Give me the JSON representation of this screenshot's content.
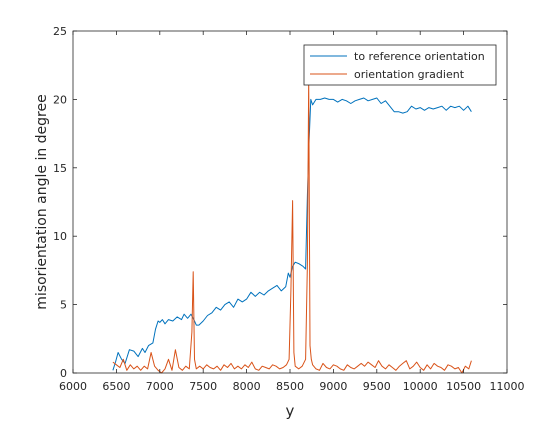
{
  "chart_data": {
    "type": "line",
    "title": "",
    "xlabel": "y",
    "ylabel": "misorientation angle in degree",
    "xlim": [
      6000,
      11000
    ],
    "ylim": [
      0,
      25
    ],
    "xticks": [
      6000,
      6500,
      7000,
      7500,
      8000,
      8500,
      9000,
      9500,
      10000,
      10500,
      11000
    ],
    "yticks": [
      0,
      5,
      10,
      15,
      20,
      25
    ],
    "grid": false,
    "legend_position": "top-right",
    "series": [
      {
        "name": "to reference orientation",
        "color": "#0072BD",
        "x": [
          6460,
          6490,
          6520,
          6560,
          6600,
          6650,
          6700,
          6750,
          6800,
          6830,
          6870,
          6920,
          6950,
          6980,
          7000,
          7030,
          7060,
          7100,
          7150,
          7200,
          7250,
          7280,
          7320,
          7360,
          7400,
          7420,
          7450,
          7500,
          7550,
          7600,
          7650,
          7700,
          7750,
          7800,
          7850,
          7900,
          7950,
          8000,
          8050,
          8100,
          8150,
          8200,
          8250,
          8300,
          8350,
          8400,
          8450,
          8480,
          8500,
          8530,
          8560,
          8600,
          8650,
          8680,
          8700,
          8720,
          8740,
          8760,
          8800,
          8850,
          8900,
          8950,
          9000,
          9050,
          9100,
          9150,
          9200,
          9250,
          9300,
          9350,
          9400,
          9450,
          9500,
          9550,
          9600,
          9650,
          9700,
          9750,
          9800,
          9850,
          9900,
          9950,
          10000,
          10050,
          10100,
          10150,
          10200,
          10250,
          10300,
          10350,
          10400,
          10450,
          10500,
          10550,
          10590
        ],
        "values": [
          0.2,
          0.8,
          1.5,
          1.0,
          0.7,
          1.7,
          1.6,
          1.2,
          1.8,
          1.5,
          2.0,
          2.2,
          3.2,
          3.8,
          3.7,
          3.9,
          3.6,
          3.9,
          3.8,
          4.1,
          3.9,
          4.3,
          4.0,
          4.3,
          3.8,
          3.5,
          3.5,
          3.8,
          4.2,
          4.4,
          4.8,
          4.6,
          5.0,
          5.2,
          4.8,
          5.4,
          5.2,
          5.4,
          5.9,
          5.6,
          5.9,
          5.7,
          6.0,
          6.2,
          6.4,
          6.0,
          6.3,
          7.3,
          7.0,
          7.8,
          8.1,
          8.0,
          7.8,
          7.6,
          13.0,
          17.0,
          20.0,
          19.6,
          20.0,
          20.0,
          20.1,
          20.0,
          20.0,
          19.8,
          20.0,
          19.9,
          19.7,
          19.9,
          20.0,
          20.1,
          19.9,
          20.0,
          20.1,
          19.7,
          19.9,
          19.5,
          19.1,
          19.1,
          19.0,
          19.1,
          19.5,
          19.3,
          19.4,
          19.2,
          19.4,
          19.3,
          19.4,
          19.5,
          19.2,
          19.5,
          19.4,
          19.5,
          19.2,
          19.5,
          19.1
        ]
      },
      {
        "name": "orientation gradient",
        "color": "#D95319",
        "x": [
          6460,
          6500,
          6540,
          6580,
          6620,
          6660,
          6700,
          6740,
          6780,
          6820,
          6860,
          6900,
          6940,
          6980,
          7020,
          7060,
          7100,
          7140,
          7180,
          7220,
          7260,
          7300,
          7340,
          7370,
          7385,
          7400,
          7420,
          7460,
          7500,
          7540,
          7580,
          7620,
          7660,
          7700,
          7740,
          7780,
          7820,
          7860,
          7900,
          7940,
          7980,
          8020,
          8060,
          8100,
          8140,
          8180,
          8220,
          8260,
          8300,
          8340,
          8380,
          8420,
          8460,
          8490,
          8510,
          8530,
          8545,
          8560,
          8600,
          8640,
          8680,
          8700,
          8715,
          8730,
          8745,
          8760,
          8800,
          8840,
          8880,
          8920,
          8960,
          9000,
          9040,
          9080,
          9120,
          9160,
          9200,
          9240,
          9280,
          9320,
          9360,
          9400,
          9440,
          9480,
          9520,
          9560,
          9600,
          9640,
          9680,
          9720,
          9760,
          9800,
          9840,
          9880,
          9920,
          9960,
          10000,
          10040,
          10080,
          10120,
          10160,
          10200,
          10240,
          10280,
          10320,
          10360,
          10400,
          10440,
          10480,
          10520,
          10560,
          10590
        ],
        "values": [
          0.8,
          0.6,
          0.4,
          1.0,
          0.2,
          0.6,
          0.3,
          0.5,
          0.2,
          0.5,
          0.3,
          1.5,
          0.5,
          0.2,
          0.0,
          0.3,
          1.0,
          0.2,
          1.7,
          0.4,
          0.2,
          0.5,
          0.3,
          3.0,
          7.4,
          1.0,
          0.3,
          0.5,
          0.3,
          0.6,
          0.4,
          0.3,
          0.5,
          0.2,
          0.6,
          0.4,
          0.7,
          0.3,
          0.5,
          0.3,
          0.6,
          0.4,
          0.8,
          0.3,
          0.2,
          0.5,
          0.4,
          0.3,
          0.6,
          0.5,
          0.3,
          0.4,
          0.6,
          1.0,
          6.0,
          12.6,
          1.5,
          0.5,
          0.3,
          0.5,
          1.0,
          8.0,
          21.6,
          2.0,
          1.0,
          0.6,
          0.3,
          0.2,
          0.7,
          0.4,
          0.3,
          0.6,
          0.5,
          0.3,
          0.2,
          0.6,
          0.4,
          0.3,
          0.5,
          0.7,
          0.5,
          0.8,
          0.6,
          0.4,
          0.9,
          0.5,
          0.3,
          0.6,
          0.4,
          0.2,
          0.5,
          0.7,
          0.9,
          0.3,
          0.5,
          0.8,
          0.4,
          0.2,
          0.6,
          0.3,
          0.7,
          0.5,
          0.4,
          0.2,
          0.6,
          0.5,
          0.3,
          0.4,
          0.0,
          0.5,
          0.3,
          0.9
        ]
      }
    ]
  }
}
